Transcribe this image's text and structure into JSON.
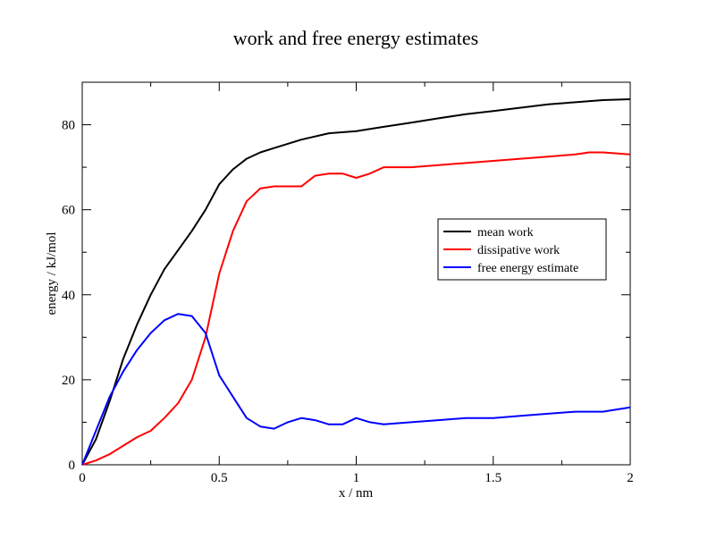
{
  "chart_data": {
    "type": "line",
    "title": "work and free energy estimates",
    "xlabel": "x / nm",
    "ylabel": "energy / kJ/mol",
    "xlim": [
      0,
      2
    ],
    "ylim": [
      0,
      90
    ],
    "x_ticks": [
      0,
      0.5,
      1,
      1.5,
      2
    ],
    "x_tick_labels": [
      "0",
      "0.5",
      "1",
      "1.5",
      "2"
    ],
    "y_ticks": [
      0,
      20,
      40,
      60,
      80
    ],
    "y_tick_labels": [
      "0",
      "20",
      "40",
      "60",
      "80"
    ],
    "legend_position": "right",
    "series": [
      {
        "name": "mean work",
        "color": "#000000",
        "x": [
          0,
          0.05,
          0.1,
          0.15,
          0.2,
          0.25,
          0.3,
          0.35,
          0.4,
          0.45,
          0.5,
          0.55,
          0.6,
          0.65,
          0.7,
          0.8,
          0.9,
          1.0,
          1.1,
          1.2,
          1.3,
          1.4,
          1.5,
          1.6,
          1.7,
          1.8,
          1.9,
          2.0
        ],
        "values": [
          0,
          6,
          15,
          25,
          33,
          40,
          46,
          50.5,
          55,
          60,
          66,
          69.5,
          72,
          73.5,
          74.5,
          76.5,
          78,
          78.5,
          79.5,
          80.5,
          81.5,
          82.5,
          83.2,
          84,
          84.8,
          85.3,
          85.8,
          86
        ]
      },
      {
        "name": "dissipative work",
        "color": "#ff0000",
        "x": [
          0,
          0.05,
          0.1,
          0.15,
          0.2,
          0.25,
          0.3,
          0.35,
          0.4,
          0.45,
          0.5,
          0.55,
          0.6,
          0.65,
          0.7,
          0.75,
          0.8,
          0.85,
          0.9,
          0.95,
          1.0,
          1.05,
          1.1,
          1.2,
          1.3,
          1.4,
          1.5,
          1.6,
          1.7,
          1.8,
          1.85,
          1.9,
          2.0
        ],
        "values": [
          0,
          1,
          2.5,
          4.5,
          6.5,
          8,
          11,
          14.5,
          20,
          30,
          45,
          55,
          62,
          65,
          65.5,
          65.5,
          65.5,
          68,
          68.5,
          68.5,
          67.5,
          68.5,
          70,
          70,
          70.5,
          71,
          71.5,
          72,
          72.5,
          73,
          73.5,
          73.5,
          73
        ]
      },
      {
        "name": "free energy estimate",
        "color": "#0000ff",
        "x": [
          0,
          0.05,
          0.1,
          0.15,
          0.2,
          0.25,
          0.3,
          0.35,
          0.4,
          0.45,
          0.5,
          0.55,
          0.6,
          0.65,
          0.7,
          0.75,
          0.8,
          0.85,
          0.9,
          0.95,
          1.0,
          1.05,
          1.1,
          1.2,
          1.3,
          1.4,
          1.5,
          1.6,
          1.7,
          1.8,
          1.9,
          2.0
        ],
        "values": [
          0,
          8,
          16,
          22,
          27,
          31,
          34,
          35.5,
          35,
          31,
          21,
          16,
          11,
          9,
          8.5,
          10,
          11,
          10.5,
          9.5,
          9.5,
          11,
          10,
          9.5,
          10,
          10.5,
          11,
          11,
          11.5,
          12,
          12.5,
          12.5,
          13.5
        ]
      }
    ]
  }
}
